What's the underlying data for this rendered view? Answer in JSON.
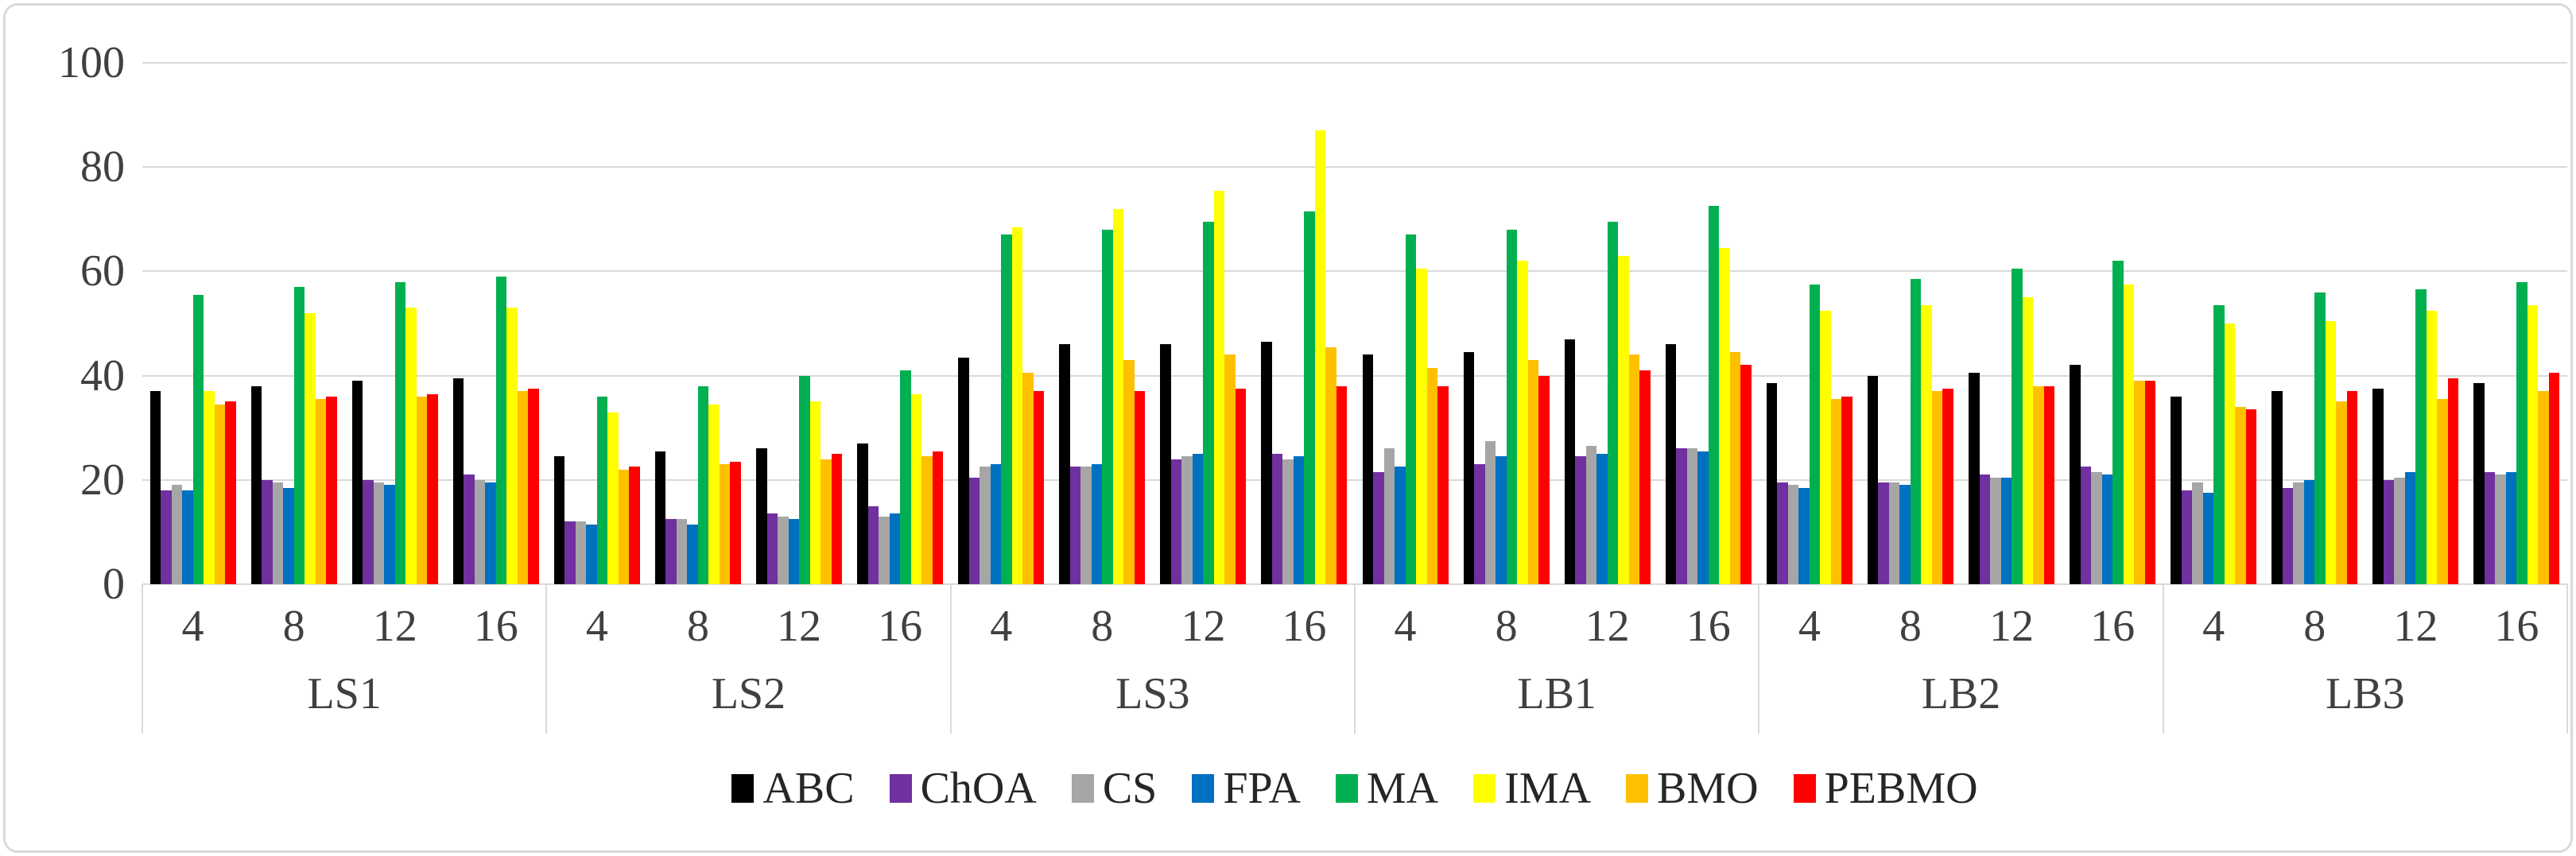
{
  "figure": {
    "background_color": "#ffffff",
    "border_color": "#d9d9d9",
    "gridline_color": "#d9d9d9",
    "axis_text_color": "#404040",
    "legend_text_color": "#262626"
  },
  "chart_data": {
    "type": "bar",
    "title": "",
    "xlabel": "",
    "ylabel": "",
    "ylim": [
      0,
      100
    ],
    "yticks": [
      0,
      20,
      40,
      60,
      80,
      100
    ],
    "grid": true,
    "legend_position": "bottom-center",
    "categories": [
      "LS1",
      "LS2",
      "LS3",
      "LB1",
      "LB2",
      "LB3"
    ],
    "subcategories": [
      "4",
      "8",
      "12",
      "16"
    ],
    "series": [
      {
        "name": "ABC",
        "color": "#000000",
        "values": [
          [
            37,
            38,
            39,
            39.5
          ],
          [
            24.5,
            25.5,
            26,
            27
          ],
          [
            43.5,
            46,
            46,
            46.5
          ],
          [
            44,
            44.5,
            47,
            46
          ],
          [
            38.5,
            40,
            40.5,
            42
          ],
          [
            36,
            37,
            37.5,
            38.5
          ]
        ]
      },
      {
        "name": "ChOA",
        "color": "#7030a0",
        "values": [
          [
            18,
            20,
            20,
            21
          ],
          [
            12,
            12.5,
            13.5,
            15
          ],
          [
            20.5,
            22.5,
            24,
            25
          ],
          [
            21.5,
            23,
            24.5,
            26
          ],
          [
            19.5,
            19.5,
            21,
            22.5
          ],
          [
            18,
            18.5,
            20,
            21.5
          ]
        ]
      },
      {
        "name": "CS",
        "color": "#a6a6a6",
        "values": [
          [
            19,
            19.5,
            19.5,
            20
          ],
          [
            12,
            12.5,
            13,
            13
          ],
          [
            22.5,
            22.5,
            24.5,
            24
          ],
          [
            26,
            27.5,
            26.5,
            26
          ],
          [
            19,
            19.5,
            20.5,
            21.5
          ],
          [
            19.5,
            19.5,
            20.5,
            21
          ]
        ]
      },
      {
        "name": "FPA",
        "color": "#0070c0",
        "values": [
          [
            18,
            18.5,
            19,
            19.5
          ],
          [
            11.5,
            11.5,
            12.5,
            13.5
          ],
          [
            23,
            23,
            25,
            24.5
          ],
          [
            22.5,
            24.5,
            25,
            25.5
          ],
          [
            18.5,
            19,
            20.5,
            21
          ],
          [
            17.5,
            20,
            21.5,
            21.5
          ]
        ]
      },
      {
        "name": "MA",
        "color": "#00b050",
        "values": [
          [
            55.5,
            57,
            58,
            59
          ],
          [
            36,
            38,
            40,
            41
          ],
          [
            67,
            68,
            69.5,
            71.5
          ],
          [
            67,
            68,
            69.5,
            72.5
          ],
          [
            57.5,
            58.5,
            60.5,
            62
          ],
          [
            53.5,
            56,
            56.5,
            58
          ]
        ]
      },
      {
        "name": "IMA",
        "color": "#ffff00",
        "values": [
          [
            37,
            52,
            53,
            53
          ],
          [
            33,
            34.5,
            35,
            36.5
          ],
          [
            68.5,
            72,
            75.5,
            87
          ],
          [
            60.5,
            62,
            63,
            64.5
          ],
          [
            52.5,
            53.5,
            55,
            57.5
          ],
          [
            50,
            50.5,
            52.5,
            53.5
          ]
        ]
      },
      {
        "name": "BMO",
        "color": "#ffc000",
        "values": [
          [
            34.5,
            35.5,
            36,
            37
          ],
          [
            22,
            23,
            24,
            24.5
          ],
          [
            40.5,
            43,
            44,
            45.5
          ],
          [
            41.5,
            43,
            44,
            44.5
          ],
          [
            35.5,
            37,
            38,
            39
          ],
          [
            34,
            35,
            35.5,
            37
          ]
        ]
      },
      {
        "name": "PEBMO",
        "color": "#ff0000",
        "values": [
          [
            35,
            36,
            36.5,
            37.5
          ],
          [
            22.5,
            23.5,
            25,
            25.5
          ],
          [
            37,
            37,
            37.5,
            38
          ],
          [
            38,
            40,
            41,
            42
          ],
          [
            36,
            37.5,
            38,
            39
          ],
          [
            33.5,
            37,
            39.5,
            40.5
          ]
        ]
      }
    ]
  }
}
